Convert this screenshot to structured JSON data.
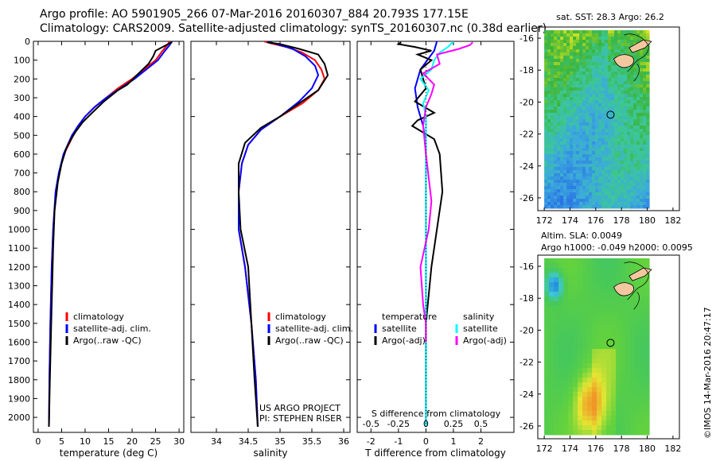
{
  "header": {
    "line1": "Argo profile: AO 5901905_266 07-Mar-2016 20160307_884 20.793S 177.15E",
    "line2": "Climatology: CARS2009. Satellite-adjusted climatology: synTS_20160307.nc (0.38d earlier)"
  },
  "colors": {
    "climatology": "#ff0000",
    "satellite": "#0000ff",
    "argo": "#000000",
    "sat_salinity": "#00ffff",
    "argo_salinity_adj": "#ff00ff"
  },
  "chart_data": [
    {
      "type": "line",
      "id": "temperature",
      "xlabel": "temperature (deg C)",
      "xlim": [
        -1,
        31
      ],
      "ylim": [
        2080,
        0
      ],
      "xticks": [
        0,
        5,
        10,
        15,
        20,
        25,
        30
      ],
      "yticks": [
        0,
        100,
        200,
        300,
        400,
        500,
        600,
        700,
        800,
        900,
        1000,
        1100,
        1200,
        1300,
        1400,
        1500,
        1600,
        1700,
        1800,
        1900,
        2000
      ],
      "legend": {
        "position": "lower-middle",
        "entries": [
          "climatology",
          "satellite-adj. clim.",
          "Argo(..raw -QC)"
        ]
      },
      "series": [
        {
          "name": "climatology",
          "color": "#ff0000",
          "x": [
            28,
            27.5,
            26.5,
            25,
            22.5,
            20,
            17,
            14.5,
            12,
            10,
            8.5,
            7.5,
            6.5,
            5.5,
            4.5,
            3.8,
            3.2,
            2.9,
            2.6,
            2.4,
            2.3
          ],
          "y": [
            0,
            20,
            50,
            100,
            150,
            200,
            250,
            300,
            350,
            400,
            450,
            500,
            550,
            600,
            700,
            800,
            1000,
            1200,
            1500,
            1800,
            2050
          ]
        },
        {
          "name": "satellite-adj. clim.",
          "color": "#0000ff",
          "x": [
            28.5,
            28,
            27,
            25.5,
            23,
            20.5,
            17.5,
            14.5,
            12,
            10,
            8.5,
            7.2,
            6.3,
            5.4,
            4.4,
            3.7,
            3.2,
            2.9,
            2.6,
            2.4,
            2.3
          ],
          "y": [
            0,
            20,
            50,
            100,
            150,
            200,
            250,
            300,
            350,
            400,
            450,
            500,
            550,
            600,
            700,
            800,
            1000,
            1200,
            1500,
            1800,
            2050
          ]
        },
        {
          "name": "Argo(..raw -QC)",
          "color": "#000000",
          "x": [
            28.5,
            28,
            25,
            24.5,
            23.5,
            21,
            19,
            17,
            14,
            11.5,
            9.5,
            8,
            7,
            6,
            5,
            4.2,
            3.5,
            3.2,
            3,
            2.8,
            2.5,
            2.3
          ],
          "y": [
            5,
            10,
            50,
            80,
            120,
            180,
            230,
            260,
            320,
            380,
            430,
            480,
            520,
            570,
            650,
            750,
            900,
            1100,
            1300,
            1500,
            1800,
            2050
          ]
        }
      ]
    },
    {
      "type": "line",
      "id": "salinity",
      "xlabel": "salinity",
      "xlim": [
        33.6,
        36.1
      ],
      "ylim": [
        2080,
        0
      ],
      "xticks": [
        34,
        34.5,
        35,
        35.5,
        36
      ],
      "legend": {
        "position": "lower-middle",
        "entries": [
          "climatology",
          "satellite-adj. clim.",
          "Argo(..raw -QC)"
        ]
      },
      "series": [
        {
          "name": "climatology",
          "color": "#ff0000",
          "x": [
            34.75,
            34.85,
            35.1,
            35.35,
            35.55,
            35.65,
            35.7,
            35.6,
            35.35,
            35,
            34.7,
            34.5,
            34.4,
            34.35,
            34.35,
            34.45,
            34.55,
            34.62,
            34.65
          ],
          "y": [
            0,
            10,
            30,
            60,
            100,
            150,
            200,
            260,
            330,
            400,
            470,
            550,
            650,
            800,
            1000,
            1200,
            1500,
            1800,
            2050
          ]
        },
        {
          "name": "satellite-adj. clim.",
          "color": "#0000ff",
          "x": [
            34.8,
            34.9,
            35.2,
            35.4,
            35.55,
            35.6,
            35.5,
            35.3,
            35.0,
            34.7,
            34.5,
            34.4,
            34.35,
            34.35,
            34.45,
            34.55,
            34.62,
            34.65
          ],
          "y": [
            0,
            10,
            40,
            80,
            130,
            180,
            250,
            320,
            400,
            470,
            550,
            650,
            800,
            1000,
            1200,
            1500,
            1800,
            2050
          ]
        },
        {
          "name": "Argo(..raw -QC)",
          "color": "#000000",
          "x": [
            34.8,
            35.0,
            35.3,
            35.6,
            35.7,
            35.75,
            35.6,
            35.3,
            35.0,
            34.7,
            34.45,
            34.35,
            34.35,
            34.38,
            34.5,
            34.55,
            34.6,
            34.65
          ],
          "y": [
            5,
            15,
            40,
            70,
            120,
            180,
            260,
            330,
            400,
            460,
            540,
            650,
            800,
            1000,
            1200,
            1500,
            1800,
            2050
          ]
        }
      ],
      "annotation": [
        "US ARGO PROJECT",
        "PI: STEPHEN RISER"
      ]
    },
    {
      "type": "line",
      "id": "difference",
      "xlabel": "T difference from climatology",
      "x2label": "S difference from climatology",
      "xlim": [
        -2.5,
        3.2
      ],
      "ylim": [
        2080,
        0
      ],
      "xticks": [
        -2,
        -1,
        0,
        1,
        2
      ],
      "x2ticks": [
        -0.5,
        -0.25,
        0,
        0.25,
        0.5
      ],
      "legend": {
        "position": "lower-middle",
        "entries": [
          "temperature",
          "satellite",
          "Argo(-adj)",
          "salinity",
          "satellite",
          "Argo(-adj)"
        ]
      },
      "series": [
        {
          "name": "satellite",
          "group": "temperature",
          "color": "#0000ff",
          "x": [
            0.4,
            0.3,
            -0.2,
            -0.4,
            -0.3,
            -0.1,
            0,
            0,
            0,
            0,
            0,
            0
          ],
          "y": [
            0,
            50,
            150,
            250,
            350,
            450,
            550,
            700,
            900,
            1200,
            1600,
            2050
          ]
        },
        {
          "name": "Argo(-adj)",
          "group": "temperature",
          "color": "#000000",
          "x": [
            -0.9,
            -1.0,
            -0.4,
            0.2,
            -0.3,
            0.2,
            -0.2,
            -0.1,
            0,
            -0.4,
            0.3,
            -0.3,
            -0.5,
            0.3,
            0.5,
            0.6,
            0.4,
            0.2,
            0,
            0
          ],
          "y": [
            5,
            15,
            30,
            50,
            70,
            100,
            150,
            200,
            250,
            320,
            380,
            420,
            450,
            520,
            600,
            800,
            1000,
            1200,
            1500,
            2050
          ]
        },
        {
          "name": "satellite",
          "group": "salinity",
          "color": "#00ffff",
          "x": [
            1.0,
            0.8,
            0.5,
            0.3,
            0.2,
            -0.2,
            0.1,
            -0.1,
            0,
            0,
            0,
            0,
            0
          ],
          "y": [
            0,
            30,
            60,
            100,
            150,
            200,
            260,
            330,
            400,
            500,
            700,
            1000,
            2050
          ]
        },
        {
          "name": "Argo(-adj)",
          "group": "salinity",
          "color": "#ff00ff",
          "x": [
            1.7,
            1.6,
            1.2,
            0.4,
            0.5,
            -0.1,
            0.3,
            0.2,
            0,
            -0.1,
            0,
            0.2,
            0.1,
            -0.2,
            -0.1,
            0,
            0
          ],
          "y": [
            5,
            20,
            40,
            70,
            120,
            170,
            230,
            280,
            350,
            450,
            600,
            850,
            1000,
            1200,
            1400,
            1500,
            1600
          ]
        }
      ]
    },
    {
      "type": "heatmap",
      "id": "sst-map",
      "title": "sat. SST: 28.3 Argo: 26.2",
      "xlim": [
        171.5,
        182.5
      ],
      "ylim": [
        -26.8,
        -15.3
      ],
      "xticks": [
        172,
        174,
        176,
        178,
        180,
        182
      ],
      "yticks": [
        -16,
        -18,
        -20,
        -22,
        -24,
        -26
      ],
      "marker": {
        "lon": 177.15,
        "lat": -20.793
      }
    },
    {
      "type": "heatmap",
      "id": "sla-map",
      "title": "Altim. SLA: 0.0049",
      "subtitle": "Argo h1000: -0.049 h2000: 0.0095",
      "xlim": [
        171.5,
        182.5
      ],
      "ylim": [
        -26.8,
        -15.3
      ],
      "xticks": [
        172,
        174,
        176,
        178,
        180,
        182
      ],
      "yticks": [
        -16,
        -18,
        -20,
        -22,
        -24,
        -26
      ],
      "marker": {
        "lon": 177.15,
        "lat": -20.793
      }
    }
  ],
  "footer": {
    "credit": "©IMOS 14-Mar-2016 20:47:17"
  }
}
